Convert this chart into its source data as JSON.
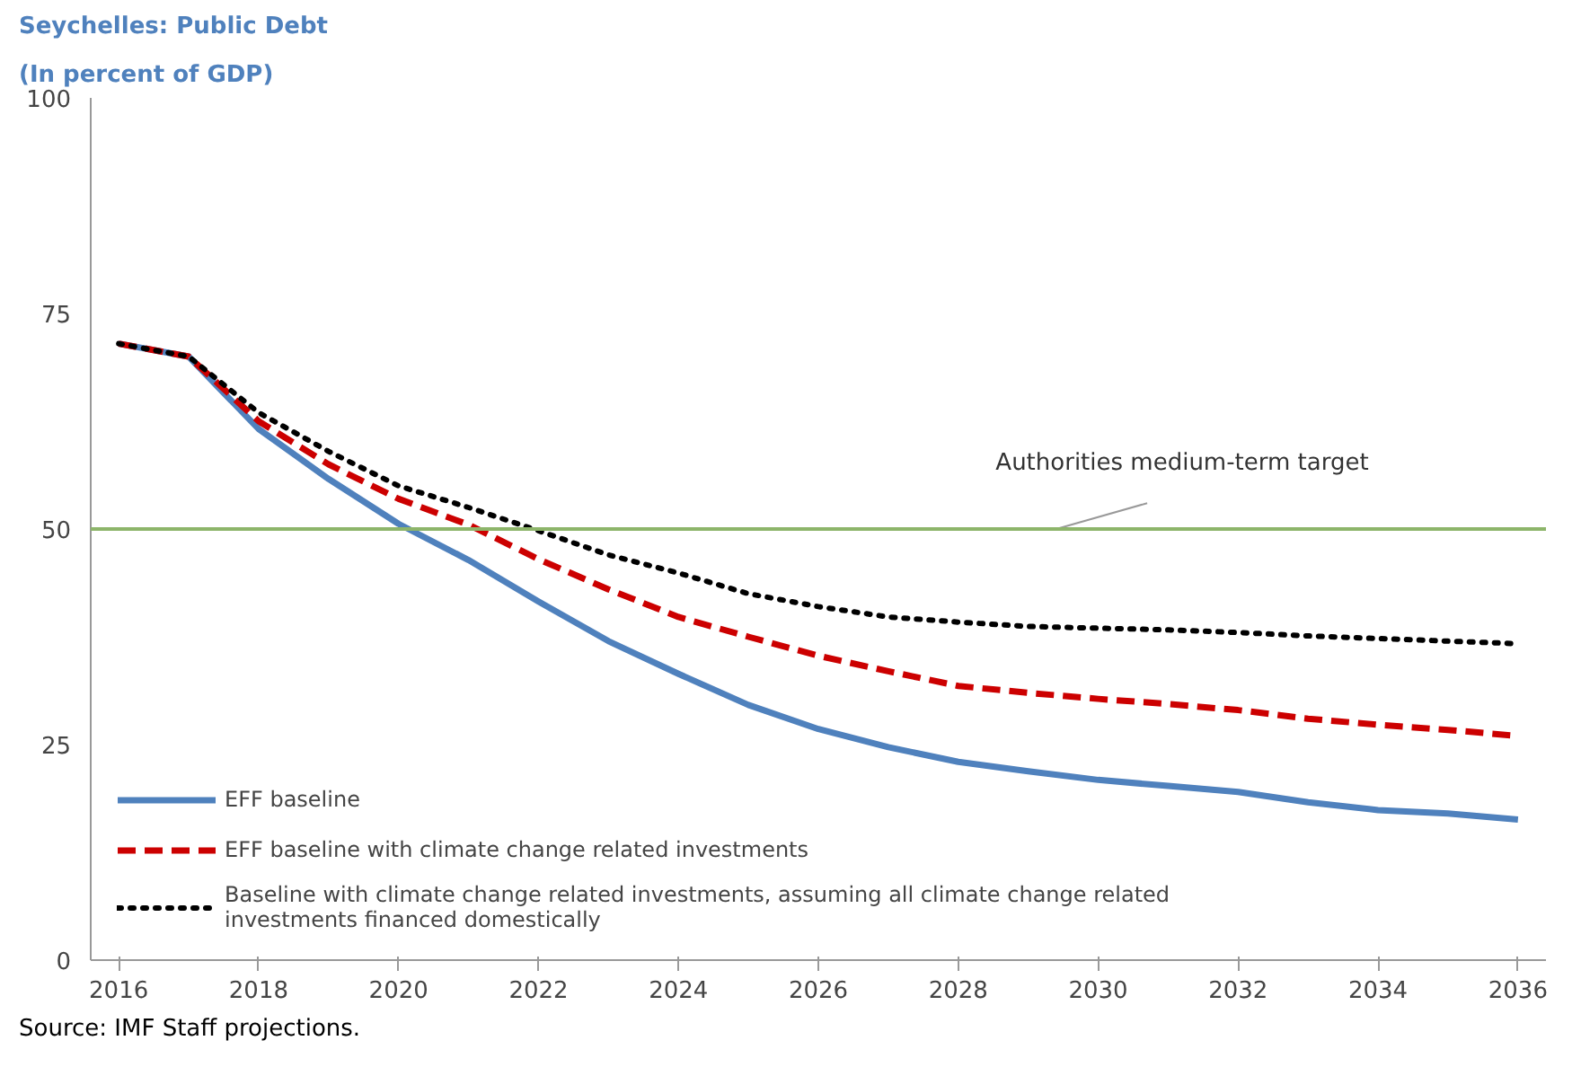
{
  "chart_data": {
    "type": "line",
    "title": "Seychelles: Public Debt",
    "subtitle": "(In percent of GDP)",
    "x": [
      2016,
      2017,
      2018,
      2019,
      2020,
      2021,
      2022,
      2023,
      2024,
      2025,
      2026,
      2027,
      2028,
      2029,
      2030,
      2031,
      2032,
      2033,
      2034,
      2035,
      2036
    ],
    "series": [
      {
        "name": "EFF baseline",
        "color": "#4f81bd",
        "line_style": "solid",
        "values": [
          71.5,
          70,
          61.6,
          55.8,
          50.6,
          46.4,
          41.6,
          37,
          33.2,
          29.6,
          26.8,
          24.7,
          23,
          21.9,
          20.9,
          20.2,
          19.5,
          18.3,
          17.4,
          17,
          16.3
        ]
      },
      {
        "name": "EFF baseline with climate change related investments",
        "color": "#cc0000",
        "line_style": "dashed",
        "values": [
          71.5,
          70,
          62.5,
          57.5,
          53.5,
          50.5,
          46.5,
          43,
          39.8,
          37.5,
          35.3,
          33.5,
          31.8,
          31,
          30.3,
          29.7,
          29,
          28,
          27.3,
          26.7,
          26
        ]
      },
      {
        "name": "Baseline with climate change related investments, assuming all climate change related investments financed domestically",
        "color": "#000000",
        "line_style": "dotted",
        "values": [
          71.5,
          70,
          63.5,
          59,
          55,
          52.5,
          49.8,
          47,
          44.9,
          42.5,
          41,
          39.8,
          39.2,
          38.7,
          38.5,
          38.3,
          38,
          37.6,
          37.3,
          37,
          36.7
        ]
      }
    ],
    "ref_lines": [
      {
        "axis": "y",
        "value": 50,
        "label": "Authorities medium-term target",
        "color": "#8db56a"
      }
    ],
    "xlim": [
      2015.6,
      2036.4
    ],
    "xticks": [
      2016,
      2018,
      2020,
      2022,
      2024,
      2026,
      2028,
      2030,
      2032,
      2034,
      2036
    ],
    "ylim": [
      0,
      100
    ],
    "yticks": [
      0,
      25,
      50,
      75,
      100
    ],
    "grid": false,
    "legend": "bottom left",
    "marker": "none",
    "annotations": [
      "Source: IMF Staff projections."
    ]
  }
}
